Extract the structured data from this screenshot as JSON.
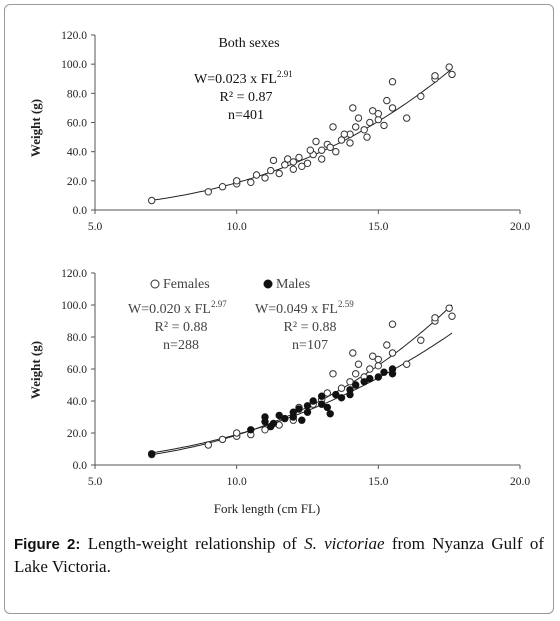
{
  "caption": {
    "label": "Figure 2:",
    "text_before": "Length-weight relationship of",
    "species": "S. victoriae",
    "text_after": "from Nyanza Gulf of Lake Victoria."
  },
  "chart_data": [
    {
      "type": "scatter",
      "title": "Both sexes",
      "xlabel": "",
      "ylabel": "Weight (g)",
      "xlim": [
        5.0,
        20.0
      ],
      "ylim": [
        0.0,
        120.0
      ],
      "x_ticks": [
        "5.0",
        "10.0",
        "15.0",
        "20.0"
      ],
      "y_ticks": [
        "0.0",
        "20.0",
        "40.0",
        "60.0",
        "80.0",
        "100.0",
        "120.0"
      ],
      "annotations": {
        "equation": "W=0.023 x FL",
        "exponent": "2.91",
        "r2": "R² = 0.87",
        "n": "n=401"
      },
      "series": [
        {
          "marker": "open-circle",
          "fit": {
            "a": 0.023,
            "b": 2.91,
            "x_range": [
              7.0,
              17.6
            ]
          },
          "points": [
            [
              7.0,
              6.5
            ],
            [
              9.0,
              12.5
            ],
            [
              9.5,
              16
            ],
            [
              10.0,
              18
            ],
            [
              10.0,
              20
            ],
            [
              10.5,
              19
            ],
            [
              10.7,
              24
            ],
            [
              11.0,
              22
            ],
            [
              11.2,
              27
            ],
            [
              11.5,
              25
            ],
            [
              11.7,
              31
            ],
            [
              12.0,
              28
            ],
            [
              12.0,
              33
            ],
            [
              12.2,
              36
            ],
            [
              12.5,
              32
            ],
            [
              12.7,
              38
            ],
            [
              13.0,
              35
            ],
            [
              13.0,
              41
            ],
            [
              13.2,
              45
            ],
            [
              13.5,
              40
            ],
            [
              13.7,
              48
            ],
            [
              14.0,
              46
            ],
            [
              14.0,
              52
            ],
            [
              14.2,
              57
            ],
            [
              14.5,
              55
            ],
            [
              14.7,
              60
            ],
            [
              15.0,
              62
            ],
            [
              15.0,
              66
            ],
            [
              15.2,
              58
            ],
            [
              15.5,
              70
            ],
            [
              15.5,
              88
            ],
            [
              16.0,
              63
            ],
            [
              16.5,
              78
            ],
            [
              17.0,
              90
            ],
            [
              17.0,
              92
            ],
            [
              17.5,
              98
            ],
            [
              17.6,
              93
            ],
            [
              11.8,
              35
            ],
            [
              12.3,
              30
            ],
            [
              13.3,
              43
            ],
            [
              13.8,
              52
            ],
            [
              14.3,
              63
            ],
            [
              14.8,
              68
            ],
            [
              15.3,
              75
            ],
            [
              14.1,
              70
            ],
            [
              13.4,
              57
            ],
            [
              12.8,
              47
            ],
            [
              11.3,
              34
            ],
            [
              12.6,
              41
            ],
            [
              14.6,
              50
            ]
          ]
        }
      ]
    },
    {
      "type": "scatter",
      "xlabel": "Fork length (cm FL)",
      "ylabel": "Weight (g)",
      "xlim": [
        5.0,
        20.0
      ],
      "ylim": [
        0.0,
        120.0
      ],
      "x_ticks": [
        "5.0",
        "10.0",
        "15.0",
        "20.0"
      ],
      "y_ticks": [
        "0.0",
        "20.0",
        "40.0",
        "60.0",
        "80.0",
        "100.0",
        "120.0"
      ],
      "legend": {
        "females": "Females",
        "males": "Males",
        "position": "top"
      },
      "series": [
        {
          "name": "Females",
          "marker": "open-circle",
          "annotation": {
            "equation": "W=0.020 x FL",
            "exponent": "2.97",
            "r2": "R² = 0.88",
            "n": "n=288"
          },
          "fit": {
            "a": 0.02,
            "b": 2.97,
            "x_range": [
              7.0,
              17.6
            ]
          },
          "points": [
            [
              7.0,
              6.5
            ],
            [
              9.0,
              12.5
            ],
            [
              9.5,
              16
            ],
            [
              10.0,
              18
            ],
            [
              10.0,
              20
            ],
            [
              10.5,
              19
            ],
            [
              11.0,
              22
            ],
            [
              11.5,
              25
            ],
            [
              12.0,
              28
            ],
            [
              12.2,
              36
            ],
            [
              12.7,
              38
            ],
            [
              13.0,
              41
            ],
            [
              13.2,
              45
            ],
            [
              13.7,
              48
            ],
            [
              14.0,
              52
            ],
            [
              14.2,
              57
            ],
            [
              14.5,
              55
            ],
            [
              14.7,
              60
            ],
            [
              15.0,
              62
            ],
            [
              15.0,
              66
            ],
            [
              15.5,
              70
            ],
            [
              15.5,
              88
            ],
            [
              16.0,
              63
            ],
            [
              16.5,
              78
            ],
            [
              17.0,
              90
            ],
            [
              17.0,
              92
            ],
            [
              17.5,
              98
            ],
            [
              17.6,
              93
            ],
            [
              14.3,
              63
            ],
            [
              14.8,
              68
            ],
            [
              15.3,
              75
            ],
            [
              14.1,
              70
            ],
            [
              13.4,
              57
            ]
          ]
        },
        {
          "name": "Males",
          "marker": "filled-circle",
          "annotation": {
            "equation": "W=0.049 x FL",
            "exponent": "2.59",
            "r2": "R² = 0.88",
            "n": "n=107"
          },
          "fit": {
            "a": 0.049,
            "b": 2.59,
            "x_range": [
              7.0,
              17.6
            ]
          },
          "points": [
            [
              7.0,
              7
            ],
            [
              10.5,
              22
            ],
            [
              11.0,
              27
            ],
            [
              11.0,
              30
            ],
            [
              11.3,
              26
            ],
            [
              11.5,
              31
            ],
            [
              11.7,
              29
            ],
            [
              12.0,
              33
            ],
            [
              12.0,
              30
            ],
            [
              12.2,
              35
            ],
            [
              12.5,
              37
            ],
            [
              12.5,
              33
            ],
            [
              12.7,
              40
            ],
            [
              13.0,
              38
            ],
            [
              13.0,
              43
            ],
            [
              13.2,
              36
            ],
            [
              13.5,
              44
            ],
            [
              13.7,
              42
            ],
            [
              14.0,
              47
            ],
            [
              14.0,
              44
            ],
            [
              14.2,
              50
            ],
            [
              14.5,
              52
            ],
            [
              14.7,
              54
            ],
            [
              15.0,
              55
            ],
            [
              15.2,
              58
            ],
            [
              15.5,
              57
            ],
            [
              15.5,
              60
            ],
            [
              11.2,
              24
            ],
            [
              12.3,
              28
            ],
            [
              13.3,
              32
            ]
          ]
        }
      ]
    }
  ]
}
